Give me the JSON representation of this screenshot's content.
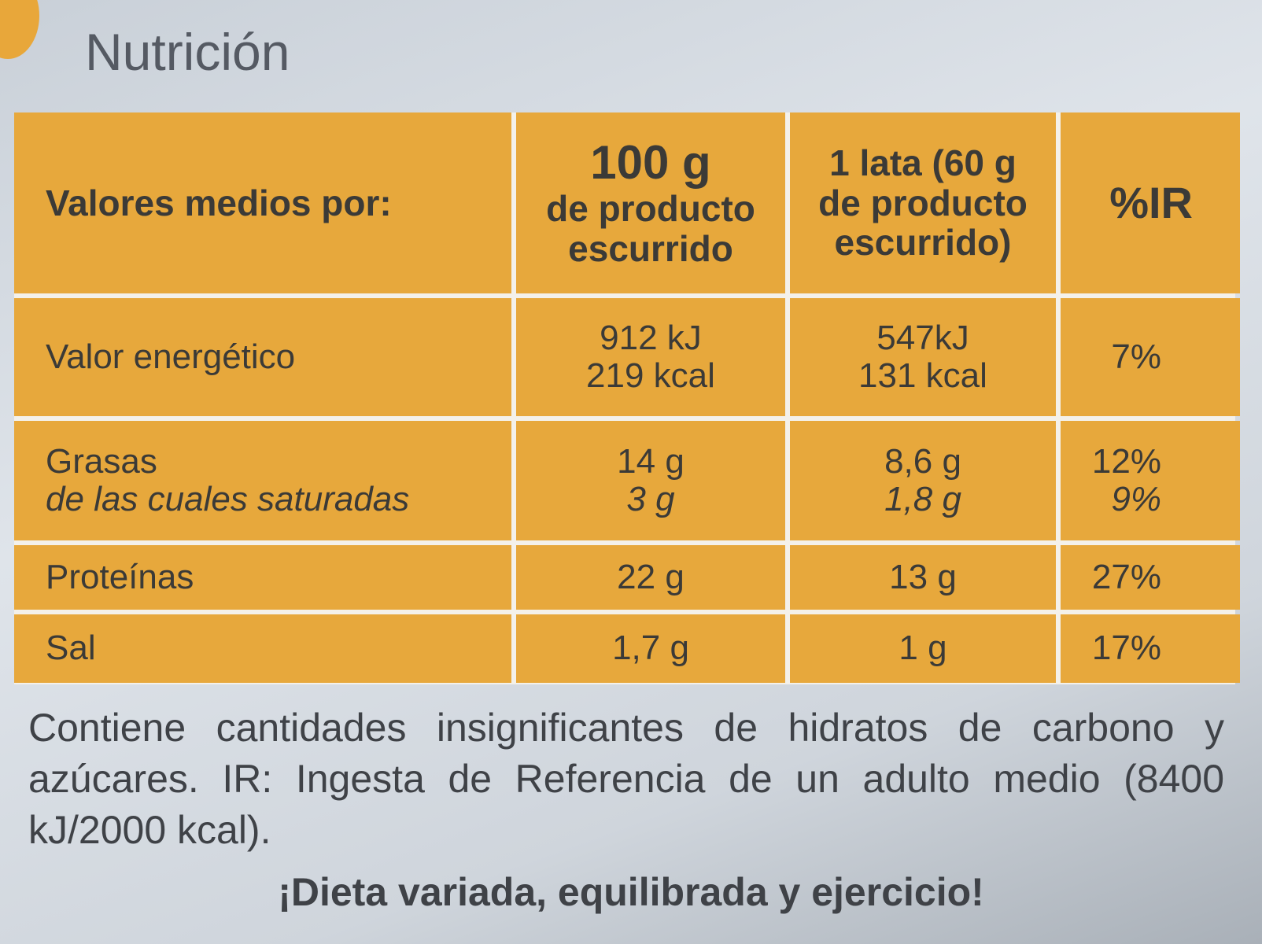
{
  "header": {
    "title": "Nutrición"
  },
  "table": {
    "rows": [
      [
        [
          "Valores medios por:"
        ],
        [
          "100 g",
          "de producto",
          "escurrido"
        ],
        [
          "1 lata (60 g",
          "de producto",
          "escurrido)"
        ],
        [
          "%IR"
        ]
      ],
      [
        [
          "Valor energético"
        ],
        [
          "912 kJ",
          "219 kcal"
        ],
        [
          "547kJ",
          "131 kcal"
        ],
        [
          "7%"
        ]
      ],
      [
        [
          "Grasas",
          "de las cuales saturadas"
        ],
        [
          "14 g",
          "3 g"
        ],
        [
          "8,6 g",
          "1,8 g"
        ],
        [
          "12%",
          "9%"
        ]
      ],
      [
        [
          "Proteínas"
        ],
        [
          "22 g"
        ],
        [
          "13 g"
        ],
        [
          "27%"
        ]
      ],
      [
        [
          "Sal"
        ],
        [
          "1,7 g"
        ],
        [
          "1 g"
        ],
        [
          "17%"
        ]
      ]
    ]
  },
  "footnote": "Contiene cantidades insignificantes de hidratos de carbono y azúcares. IR: Ingesta de Referencia de un adulto medio (8400 kJ/2000 kcal).",
  "slogan": "¡Dieta variada, equilibrada y ejercicio!"
}
